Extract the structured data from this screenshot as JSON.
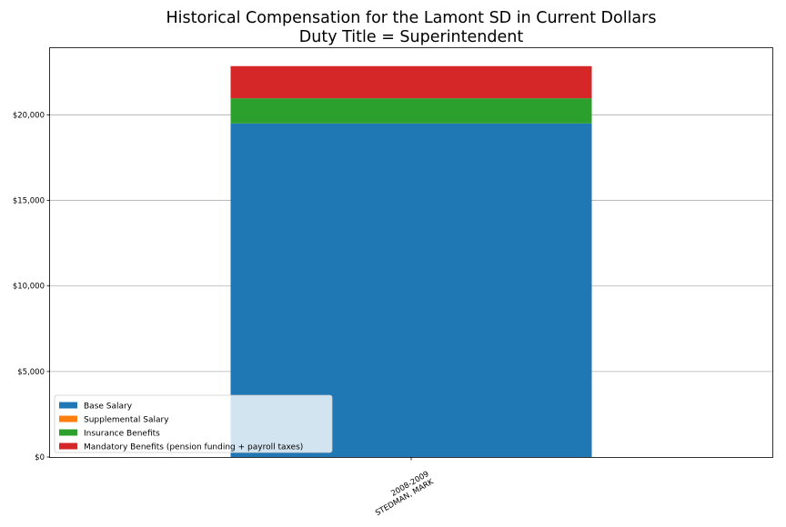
{
  "chart_data": {
    "type": "bar",
    "stacked": true,
    "title": "Historical Compensation for the Lamont SD in Current Dollars",
    "subtitle": "Duty Title = Superintendent",
    "xlabel": "",
    "ylabel": "",
    "categories": [
      {
        "line1": "2008-2009",
        "line2": "STEDMAN, MARK"
      }
    ],
    "ylim": [
      0,
      23900
    ],
    "yticks": [
      0,
      5000,
      10000,
      15000,
      20000
    ],
    "ytick_labels": [
      "$0",
      "$5,000",
      "$10,000",
      "$15,000",
      "$20,000"
    ],
    "grid": "horizontal",
    "legend_position": "lower-left",
    "series": [
      {
        "name": "Base Salary",
        "color": "#1f77b4",
        "values": [
          19500
        ]
      },
      {
        "name": "Supplemental Salary",
        "color": "#ff7f0e",
        "values": [
          0
        ]
      },
      {
        "name": "Insurance Benefits",
        "color": "#2ca02c",
        "values": [
          1470
        ]
      },
      {
        "name": "Mandatory Benefits (pension funding + payroll taxes)",
        "color": "#d62728",
        "values": [
          1880
        ]
      }
    ]
  }
}
